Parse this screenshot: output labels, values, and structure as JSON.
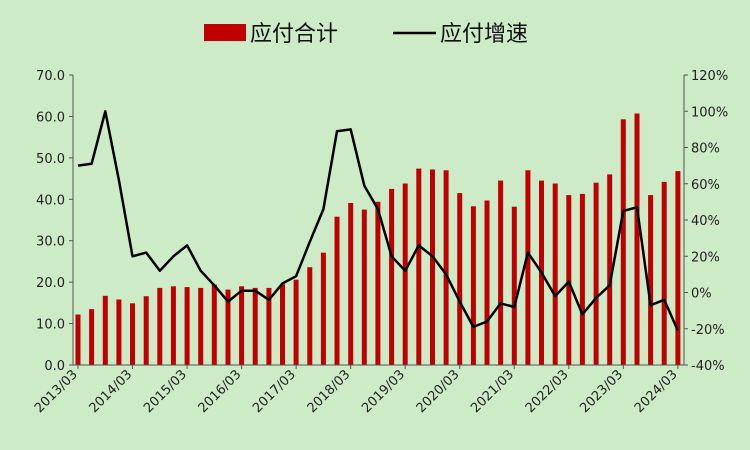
{
  "colors": {
    "background": "#cdebc7",
    "bar": "#c00000",
    "line": "#000000"
  },
  "chart_data": {
    "type": "bar+line",
    "legend": {
      "placement": "top-center",
      "items": [
        "应付合计",
        "应付增速"
      ]
    },
    "x_tick_labels": [
      "2013/03",
      "2014/03",
      "2015/03",
      "2016/03",
      "2017/03",
      "2018/03",
      "2019/03",
      "2020/03",
      "2021/03",
      "2022/03",
      "2023/03",
      "2024/03"
    ],
    "y_left": {
      "lim": [
        0,
        70
      ],
      "ticks": [
        "0.0",
        "10.0",
        "20.0",
        "30.0",
        "40.0",
        "50.0",
        "60.0",
        "70.0"
      ]
    },
    "y_right": {
      "lim": [
        -40,
        120
      ],
      "ticks": [
        "-40%",
        "-20%",
        "0%",
        "20%",
        "40%",
        "60%",
        "80%",
        "100%",
        "120%"
      ]
    },
    "grid": false,
    "categories": [
      "2013Q1",
      "2013Q2",
      "2013Q3",
      "2013Q4",
      "2014Q1",
      "2014Q2",
      "2014Q3",
      "2014Q4",
      "2015Q1",
      "2015Q2",
      "2015Q3",
      "2015Q4",
      "2016Q1",
      "2016Q2",
      "2016Q3",
      "2016Q4",
      "2017Q1",
      "2017Q2",
      "2017Q3",
      "2017Q4",
      "2018Q1",
      "2018Q2",
      "2018Q3",
      "2018Q4",
      "2019Q1",
      "2019Q2",
      "2019Q3",
      "2019Q4",
      "2020Q1",
      "2020Q2",
      "2020Q3",
      "2020Q4",
      "2021Q1",
      "2021Q2",
      "2021Q3",
      "2021Q4",
      "2022Q1",
      "2022Q2",
      "2022Q3",
      "2022Q4",
      "2023Q1",
      "2023Q2",
      "2023Q3",
      "2023Q4",
      "2024Q1"
    ],
    "series": [
      {
        "name": "应付合计",
        "type": "bar",
        "axis": "left",
        "values": [
          12.2,
          13.5,
          16.7,
          15.8,
          14.9,
          16.6,
          18.6,
          19.0,
          18.8,
          18.6,
          19.4,
          18.2,
          19.0,
          18.6,
          18.6,
          19.5,
          20.6,
          23.6,
          27.1,
          35.8,
          39.1,
          37.5,
          39.4,
          42.5,
          43.8,
          47.4,
          47.2,
          47.0,
          41.5,
          38.3,
          39.7,
          44.5,
          38.2,
          47.0,
          44.5,
          43.8,
          41.0,
          41.3,
          44.0,
          46.0,
          59.3,
          60.7,
          41.0,
          44.2,
          46.8
        ]
      },
      {
        "name": "应付增速",
        "type": "line",
        "axis": "right",
        "values": [
          70,
          71,
          100,
          62,
          20,
          22,
          12,
          20,
          26,
          12,
          4,
          -5,
          1,
          1,
          -4,
          5,
          9,
          28,
          46,
          89,
          90,
          59,
          46,
          20,
          12,
          26,
          20,
          10,
          -5,
          -19,
          -16,
          -6,
          -8,
          22,
          11,
          -2,
          6,
          -12,
          -3,
          4,
          45,
          47,
          -7,
          -4,
          -21
        ]
      }
    ]
  }
}
